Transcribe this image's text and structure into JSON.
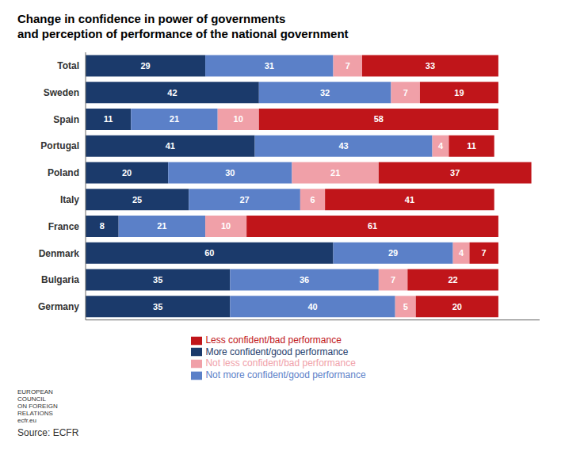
{
  "chart_data": {
    "type": "bar",
    "title": "Change in confidence in power of governments\nand perception of performance of the national government",
    "orientation": "horizontal",
    "stacked": true,
    "data_labels": true,
    "tick_labels": "y",
    "categories": [
      "Total",
      "Sweden",
      "Spain",
      "Portugal",
      "Poland",
      "Italy",
      "France",
      "Denmark",
      "Bulgaria",
      "Germany"
    ],
    "series": [
      {
        "name": "More confident/good performance",
        "color": "#1b3a6b",
        "values": [
          29,
          42,
          11,
          41,
          20,
          25,
          8,
          60,
          35,
          35
        ]
      },
      {
        "name": "Not more confident/good performance",
        "color": "#5b80c8",
        "values": [
          31,
          32,
          21,
          43,
          30,
          27,
          21,
          29,
          36,
          40
        ]
      },
      {
        "name": "Not less confident/bad performance",
        "color": "#f0a0a8",
        "values": [
          7,
          7,
          10,
          4,
          21,
          6,
          10,
          4,
          7,
          5
        ]
      },
      {
        "name": "Less confident/bad performance",
        "color": "#c0151a",
        "values": [
          33,
          19,
          58,
          11,
          37,
          41,
          61,
          7,
          22,
          20
        ]
      }
    ],
    "xlim": [
      0,
      110
    ],
    "annotations": [
      "EUROPEAN\nCOUNCIL\nON FOREIGN\nRELATIONS\necfr.eu",
      "Source: ECFR"
    ]
  }
}
